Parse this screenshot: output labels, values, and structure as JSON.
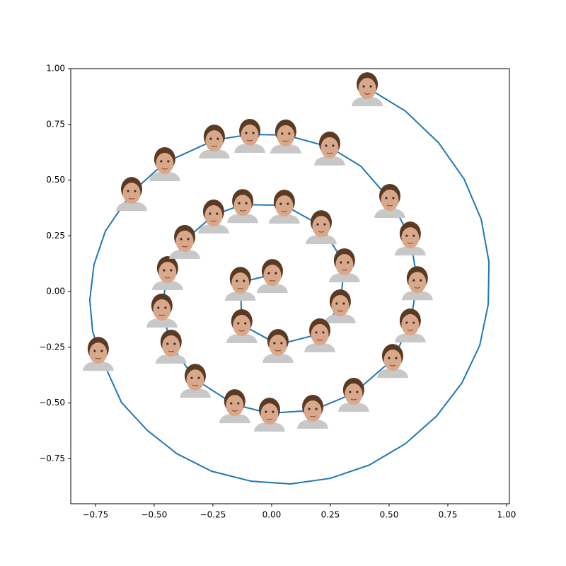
{
  "chart_data": {
    "type": "line",
    "series": [
      {
        "color": "#1f77b4",
        "x": [
          0.407,
          0.569,
          0.711,
          0.819,
          0.892,
          0.925,
          0.922,
          0.886,
          0.81,
          0.702,
          0.569,
          0.416,
          0.25,
          0.081,
          -0.087,
          -0.256,
          -0.404,
          -0.53,
          -0.639,
          -0.726,
          -0.762,
          -0.774,
          -0.756,
          -0.708,
          -0.596,
          -0.455,
          -0.244,
          -0.093,
          0.06,
          0.247,
          0.38,
          0.503,
          0.59,
          0.62,
          0.59,
          0.515,
          0.349,
          0.175,
          -0.009,
          -0.157,
          -0.325,
          -0.428,
          -0.467,
          -0.443,
          -0.37,
          -0.247,
          -0.123,
          0.054,
          0.211,
          0.31,
          0.292,
          0.205,
          0.027,
          -0.127,
          -0.133,
          0.003
        ],
        "values": [
          0.914,
          0.81,
          0.667,
          0.505,
          0.324,
          0.133,
          -0.057,
          -0.241,
          -0.41,
          -0.559,
          -0.683,
          -0.778,
          -0.838,
          -0.863,
          -0.851,
          -0.806,
          -0.727,
          -0.622,
          -0.498,
          -0.295,
          -0.178,
          -0.038,
          0.121,
          0.27,
          0.444,
          0.578,
          0.679,
          0.705,
          0.702,
          0.648,
          0.562,
          0.413,
          0.244,
          0.044,
          -0.146,
          -0.305,
          -0.457,
          -0.533,
          -0.546,
          -0.508,
          -0.394,
          -0.241,
          -0.079,
          0.089,
          0.229,
          0.343,
          0.39,
          0.387,
          0.295,
          0.124,
          -0.06,
          -0.19,
          -0.238,
          -0.149,
          0.041,
          0.076
        ]
      }
    ],
    "images": {
      "skin": "#d9a88a",
      "hair": "#5a3a22",
      "shirt": "#c8c8c8",
      "x": [
        0.407,
        -0.738,
        -0.596,
        -0.455,
        -0.244,
        -0.093,
        0.06,
        0.247,
        0.503,
        0.59,
        0.62,
        0.59,
        0.515,
        0.349,
        0.175,
        -0.009,
        -0.157,
        -0.325,
        -0.428,
        -0.467,
        -0.443,
        -0.37,
        -0.247,
        -0.123,
        0.054,
        0.211,
        0.31,
        0.292,
        0.205,
        0.027,
        -0.127,
        -0.133,
        0.003
      ],
      "y": [
        0.914,
        -0.273,
        0.444,
        0.578,
        0.679,
        0.705,
        0.702,
        0.648,
        0.413,
        0.244,
        0.044,
        -0.146,
        -0.305,
        -0.457,
        -0.533,
        -0.546,
        -0.508,
        -0.394,
        -0.241,
        -0.079,
        0.089,
        0.229,
        0.343,
        0.39,
        0.387,
        0.295,
        0.124,
        -0.06,
        -0.19,
        -0.238,
        -0.149,
        0.041,
        0.076
      ]
    },
    "xlim": [
      -0.855,
      1.012
    ],
    "ylim": [
      -0.952,
      1.0
    ],
    "xticks": [
      {
        "value": -0.75,
        "label": "−0.75"
      },
      {
        "value": -0.5,
        "label": "−0.50"
      },
      {
        "value": -0.25,
        "label": "−0.25"
      },
      {
        "value": 0,
        "label": "0.00"
      },
      {
        "value": 0.25,
        "label": "0.25"
      },
      {
        "value": 0.5,
        "label": "0.50"
      },
      {
        "value": 0.75,
        "label": "0.75"
      },
      {
        "value": 1,
        "label": "1.00"
      }
    ],
    "yticks": [
      {
        "value": -0.75,
        "label": "−0.75"
      },
      {
        "value": -0.5,
        "label": "−0.50"
      },
      {
        "value": -0.25,
        "label": "−0.25"
      },
      {
        "value": 0,
        "label": "0.00"
      },
      {
        "value": 0.25,
        "label": "0.25"
      },
      {
        "value": 0.5,
        "label": "0.50"
      },
      {
        "value": 0.75,
        "label": "0.75"
      },
      {
        "value": 1,
        "label": "1.00"
      }
    ]
  }
}
